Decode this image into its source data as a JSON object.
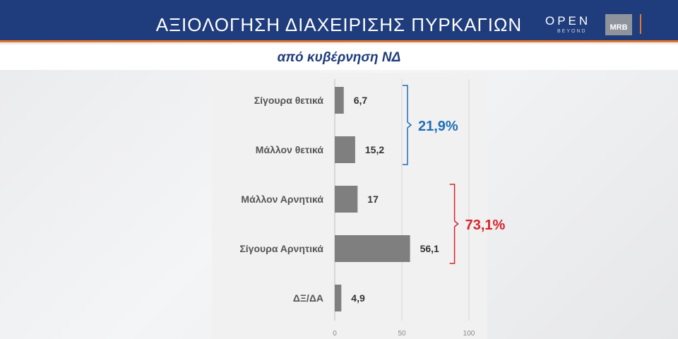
{
  "header": {
    "title": "ΑΞΙΟΛΟΓΗΣΗ ΔΙΑΧΕΙΡΙΣΗΣ ΠΥΡΚΑΓΙΩΝ",
    "logo_open": "OPEN",
    "logo_beyond": "BEYOND",
    "logo_mrb": "MRB",
    "accent_color": "#e2762b",
    "background_color": "#1f3c7c"
  },
  "chart_data": {
    "type": "bar",
    "orientation": "horizontal",
    "title": "από κυβέρνηση ΝΔ",
    "categories": [
      "Σίγουρα θετικά",
      "Μάλλον θετικά",
      "Μάλλον Αρνητικά",
      "Σίγουρα Αρνητικά",
      "ΔΞ/ΔΑ"
    ],
    "values": [
      6.7,
      15.2,
      17,
      56.1,
      4.9
    ],
    "value_labels": [
      "6,7",
      "15,2",
      "17",
      "56,1",
      "4,9"
    ],
    "xlim": [
      0,
      100
    ],
    "xticks": [
      0,
      50,
      100
    ],
    "grid": true,
    "bar_color": "#7f7f7f",
    "groups": [
      {
        "label": "21,9%",
        "from": 0,
        "to": 1,
        "color": "#1f6fb5"
      },
      {
        "label": "73,1%",
        "from": 2,
        "to": 3,
        "color": "#d9232a"
      }
    ]
  }
}
